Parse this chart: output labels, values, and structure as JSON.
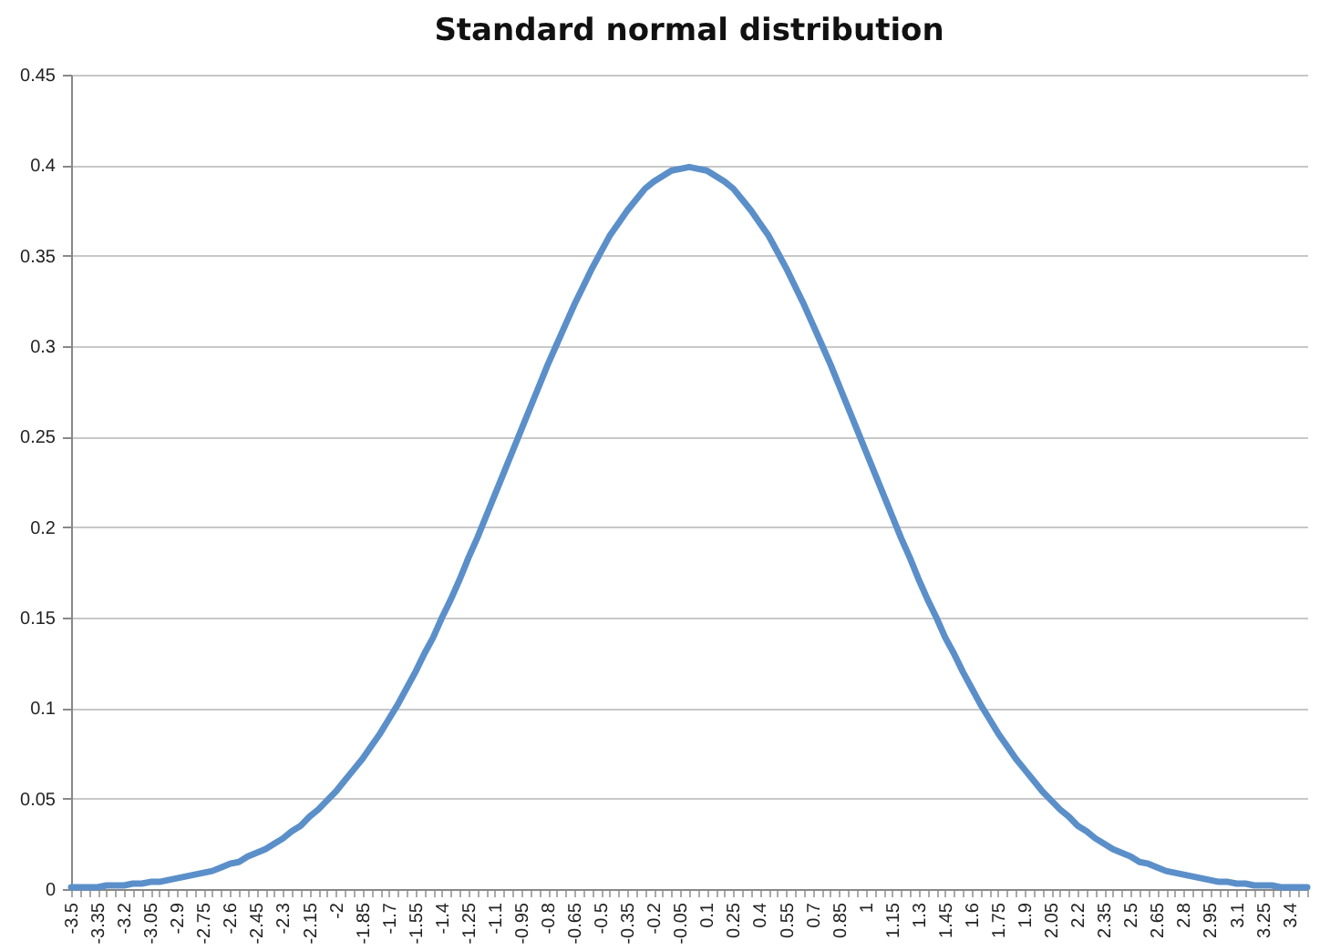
{
  "chart_data": {
    "type": "line",
    "title": "Standard normal distribution",
    "categories": [
      "-3.5",
      null,
      null,
      "-3.35",
      null,
      null,
      "-3.2",
      null,
      null,
      "-3.05",
      null,
      null,
      "-2.9",
      null,
      null,
      "-2.75",
      null,
      null,
      "-2.6",
      null,
      null,
      "-2.45",
      null,
      null,
      "-2.3",
      null,
      null,
      "-2.15",
      null,
      null,
      "-2",
      null,
      null,
      "-1.85",
      null,
      null,
      "-1.7",
      null,
      null,
      "-1.55",
      null,
      null,
      "-1.4",
      null,
      null,
      "-1.25",
      null,
      null,
      "-1.1",
      null,
      null,
      "-0.95",
      null,
      null,
      "-0.8",
      null,
      null,
      "-0.65",
      null,
      null,
      "-0.5",
      null,
      null,
      "-0.35",
      null,
      null,
      "-0.2",
      null,
      null,
      "-0.05",
      null,
      null,
      "0.1",
      null,
      null,
      "0.25",
      null,
      null,
      "0.4",
      null,
      null,
      "0.55",
      null,
      null,
      "0.7",
      null,
      null,
      "0.85",
      null,
      null,
      "1",
      null,
      null,
      "1.15",
      null,
      null,
      "1.3",
      null,
      null,
      "1.45",
      null,
      null,
      "1.6",
      null,
      null,
      "1.75",
      null,
      null,
      "1.9",
      null,
      null,
      "2.05",
      null,
      null,
      "2.2",
      null,
      null,
      "2.35",
      null,
      null,
      "2.5",
      null,
      null,
      "2.65",
      null,
      null,
      "2.8",
      null,
      null,
      "2.95",
      null,
      null,
      "3.1",
      null,
      null,
      "3.25",
      null,
      null,
      "3.4",
      null,
      null
    ],
    "series": [
      {
        "color": "#5b8fc9",
        "values": [
          0.001,
          0.001,
          0.001,
          0.001,
          0.002,
          0.002,
          0.002,
          0.003,
          0.003,
          0.004,
          0.004,
          0.005,
          0.006,
          0.007,
          0.008,
          0.009,
          0.01,
          0.012,
          0.014,
          0.015,
          0.018,
          0.02,
          0.022,
          0.025,
          0.028,
          0.032,
          0.035,
          0.04,
          0.044,
          0.049,
          0.054,
          0.06,
          0.066,
          0.072,
          0.079,
          0.086,
          0.094,
          0.102,
          0.111,
          0.12,
          0.13,
          0.139,
          0.15,
          0.16,
          0.171,
          0.183,
          0.194,
          0.206,
          0.218,
          0.23,
          0.242,
          0.254,
          0.266,
          0.278,
          0.29,
          0.301,
          0.312,
          0.323,
          0.333,
          0.343,
          0.352,
          0.361,
          0.368,
          0.375,
          0.381,
          0.387,
          0.391,
          0.394,
          0.397,
          0.398,
          0.399,
          0.398,
          0.397,
          0.394,
          0.391,
          0.387,
          0.381,
          0.375,
          0.368,
          0.361,
          0.352,
          0.343,
          0.333,
          0.323,
          0.312,
          0.301,
          0.29,
          0.278,
          0.266,
          0.254,
          0.242,
          0.23,
          0.218,
          0.206,
          0.194,
          0.183,
          0.171,
          0.16,
          0.15,
          0.139,
          0.13,
          0.12,
          0.111,
          0.102,
          0.094,
          0.086,
          0.079,
          0.072,
          0.066,
          0.06,
          0.054,
          0.049,
          0.044,
          0.04,
          0.035,
          0.032,
          0.028,
          0.025,
          0.022,
          0.02,
          0.018,
          0.015,
          0.014,
          0.012,
          0.01,
          0.009,
          0.008,
          0.007,
          0.006,
          0.005,
          0.004,
          0.004,
          0.003,
          0.003,
          0.002,
          0.002,
          0.002,
          0.001,
          0.001,
          0.001,
          0.001
        ]
      }
    ],
    "ylim": [
      0,
      0.45
    ],
    "yticks": [
      0,
      0.05,
      0.1,
      0.15,
      0.2,
      0.25,
      0.3,
      0.35,
      0.4,
      0.45
    ],
    "grid": "y",
    "marker": "none",
    "line_style": "solid"
  }
}
